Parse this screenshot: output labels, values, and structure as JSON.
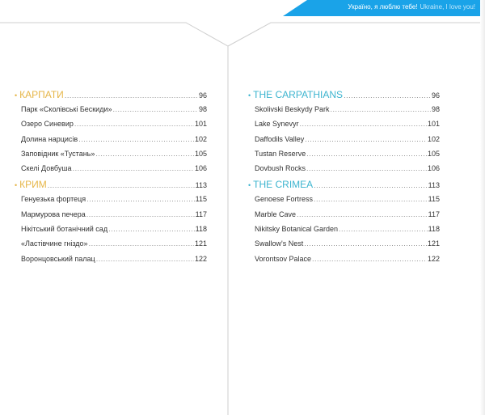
{
  "banner": {
    "ua": "Україно, я люблю тебе!",
    "en": "Ukraine, I love you!",
    "color": "#1aa3e8"
  },
  "accent_left": "#e6b648",
  "accent_right": "#3cb4cf",
  "left": {
    "sections": [
      {
        "title": "КАРПАТИ",
        "page": "96",
        "entries": [
          {
            "title": "Парк «Сколівські Бескиди»",
            "page": "98"
          },
          {
            "title": "Озеро Синевир",
            "page": "101"
          },
          {
            "title": "Долина нарцисів",
            "page": "102"
          },
          {
            "title": "Заповідник «Тустань»",
            "page": "105"
          },
          {
            "title": "Скелі Довбуша",
            "page": "106"
          }
        ]
      },
      {
        "title": "КРИМ",
        "page": "113",
        "entries": [
          {
            "title": "Генуезька фортеця",
            "page": "115"
          },
          {
            "title": "Мармурова печера",
            "page": "117"
          },
          {
            "title": "Нікітський ботанічний сад",
            "page": "118"
          },
          {
            "title": "«Ластівчине гніздо»",
            "page": "121"
          },
          {
            "title": "Воронцовський палац",
            "page": "122"
          }
        ]
      }
    ]
  },
  "right": {
    "sections": [
      {
        "title": "THE CARPATHIANS",
        "page": "96",
        "entries": [
          {
            "title": "Skolivski Beskydy Park",
            "page": "98"
          },
          {
            "title": "Lake Synevyr",
            "page": "101"
          },
          {
            "title": "Daffodils Valley",
            "page": "102"
          },
          {
            "title": "Tustan Reserve",
            "page": "105"
          },
          {
            "title": "Dovbush  Rocks",
            "page": "106"
          }
        ]
      },
      {
        "title": "THE CRIMEA",
        "page": "113",
        "entries": [
          {
            "title": "Genoese Fortress",
            "page": "115"
          },
          {
            "title": "Marble Cave",
            "page": "117"
          },
          {
            "title": "Nikitsky Botanical Garden",
            "page": "118"
          },
          {
            "title": "Swallow's Nest",
            "page": "121"
          },
          {
            "title": "Vorontsov Palace",
            "page": "122"
          }
        ]
      }
    ]
  }
}
